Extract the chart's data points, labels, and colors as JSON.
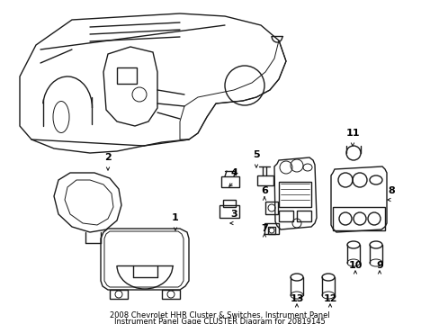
{
  "title_line1": "2008 Chevrolet HHR Cluster & Switches, Instrument Panel",
  "title_line2": "Instrument Panel Gage CLUSTER Diagram for 20819145",
  "background_color": "#ffffff",
  "line_color": "#1a1a1a",
  "label_color": "#000000",
  "fig_width": 4.89,
  "fig_height": 3.6,
  "dpi": 100,
  "font_size_labels": 8,
  "font_size_title": 6.0
}
